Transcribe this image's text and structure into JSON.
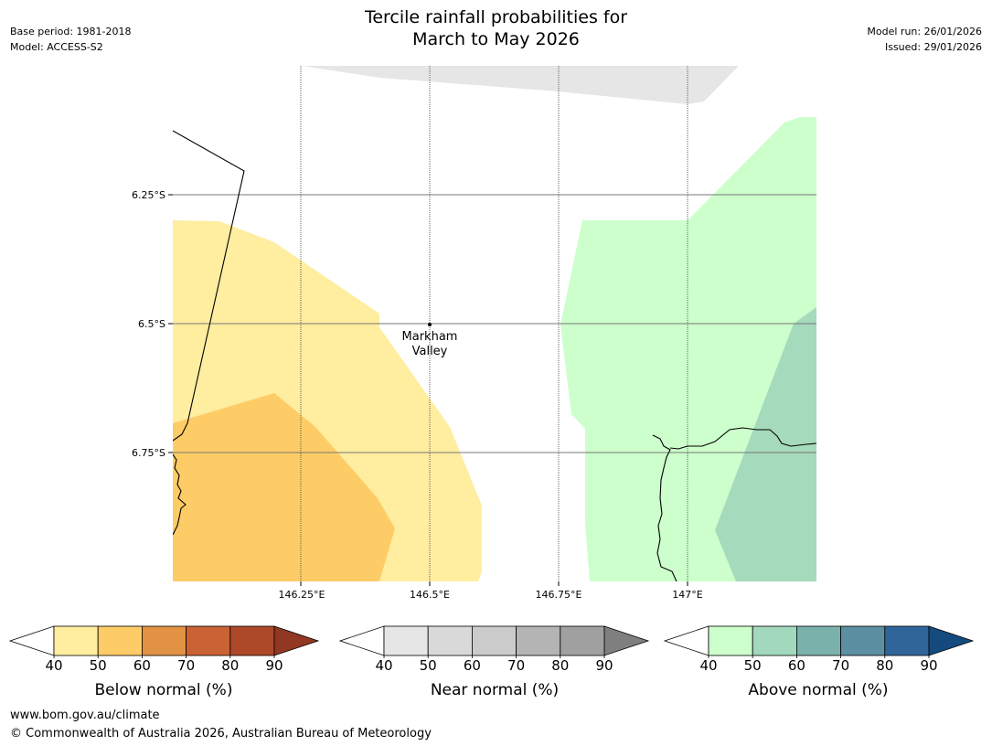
{
  "header": {
    "title_line1": "Tercile rainfall probabilities for",
    "title_line2": "March to May 2026",
    "base_period": "Base period: 1981-2018",
    "model": "Model: ACCESS-S2",
    "model_run": "Model run: 26/01/2026",
    "issued": "Issued: 29/01/2026"
  },
  "map": {
    "lat_labels": [
      "6.25°S",
      "6.5°S",
      "6.75°S"
    ],
    "lon_labels": [
      "146.25°E",
      "146.5°E",
      "146.75°E",
      "147°E"
    ],
    "place": {
      "name_line1": "Markham",
      "name_line2": "Valley"
    }
  },
  "colorbars": [
    {
      "title": "Below normal (%)",
      "ticks": [
        "40",
        "50",
        "60",
        "70",
        "80",
        "90"
      ],
      "colors": [
        "#ffeda0",
        "#fecc66",
        "#e19243",
        "#cb6234",
        "#ad4829",
        "#923722"
      ]
    },
    {
      "title": "Near normal (%)",
      "ticks": [
        "40",
        "50",
        "60",
        "70",
        "80",
        "90"
      ],
      "colors": [
        "#e6e6e6",
        "#d9d9d9",
        "#cbcbcb",
        "#b4b4b4",
        "#a0a0a0",
        "#7f7f7f"
      ]
    },
    {
      "title": "Above normal (%)",
      "ticks": [
        "40",
        "50",
        "60",
        "70",
        "80",
        "90"
      ],
      "colors": [
        "#ccffcc",
        "#a2d8bb",
        "#7bb1ab",
        "#5b8fa1",
        "#30659a",
        "#144a7e"
      ]
    }
  ],
  "footer": {
    "url": "www.bom.gov.au/climate",
    "copyright": "© Commonwealth of Australia 2026, Australian Bureau of Meteorology"
  }
}
